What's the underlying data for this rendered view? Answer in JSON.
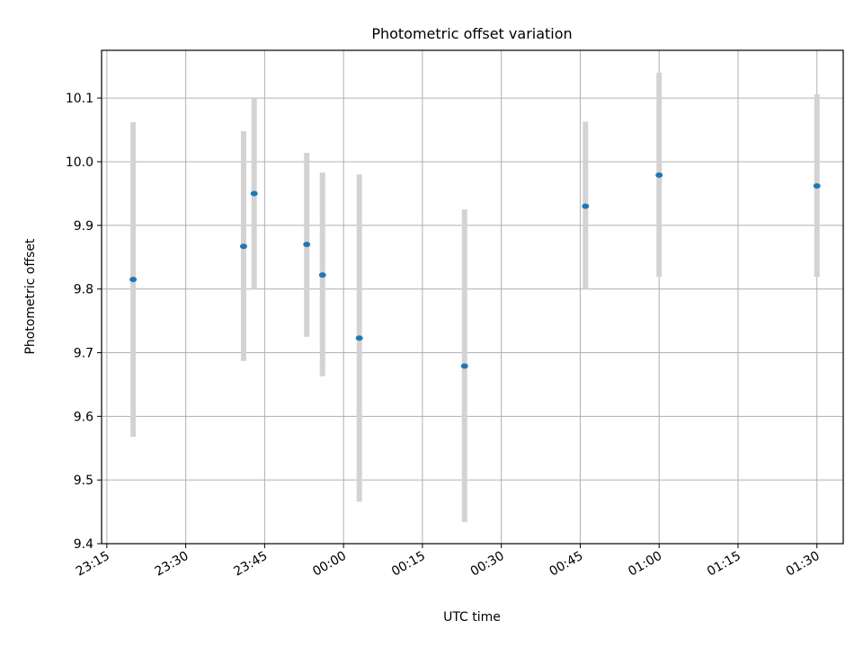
{
  "chart_data": {
    "type": "scatter",
    "title": "Photometric offset variation",
    "xlabel": "UTC time",
    "ylabel": "Photometric offset",
    "xlim": [
      "23:14",
      "01:35"
    ],
    "ylim": [
      9.4,
      10.175
    ],
    "grid": true,
    "x_ticks": [
      "23:15",
      "23:30",
      "23:45",
      "00:00",
      "00:15",
      "00:30",
      "00:45",
      "01:00",
      "01:15",
      "01:30"
    ],
    "y_ticks": [
      "9.4",
      "9.5",
      "9.6",
      "9.7",
      "9.8",
      "9.9",
      "10.0",
      "10.1"
    ],
    "colors": {
      "point": "#1f77b4",
      "error_bar": "#d3d3d3"
    },
    "points": [
      {
        "x": "23:20",
        "y": 9.815,
        "ylow": 9.568,
        "yhigh": 10.062
      },
      {
        "x": "23:41",
        "y": 9.867,
        "ylow": 9.687,
        "yhigh": 10.048
      },
      {
        "x": "23:43",
        "y": 9.95,
        "ylow": 9.8,
        "yhigh": 10.1
      },
      {
        "x": "23:53",
        "y": 9.87,
        "ylow": 9.725,
        "yhigh": 10.014
      },
      {
        "x": "23:56",
        "y": 9.822,
        "ylow": 9.663,
        "yhigh": 9.983
      },
      {
        "x": "00:03",
        "y": 9.723,
        "ylow": 9.466,
        "yhigh": 9.98
      },
      {
        "x": "00:23",
        "y": 9.679,
        "ylow": 9.434,
        "yhigh": 9.925
      },
      {
        "x": "00:46",
        "y": 9.93,
        "ylow": 9.8,
        "yhigh": 10.063
      },
      {
        "x": "01:00",
        "y": 9.979,
        "ylow": 9.819,
        "yhigh": 10.14
      },
      {
        "x": "01:30",
        "y": 9.962,
        "ylow": 9.819,
        "yhigh": 10.106
      }
    ]
  }
}
